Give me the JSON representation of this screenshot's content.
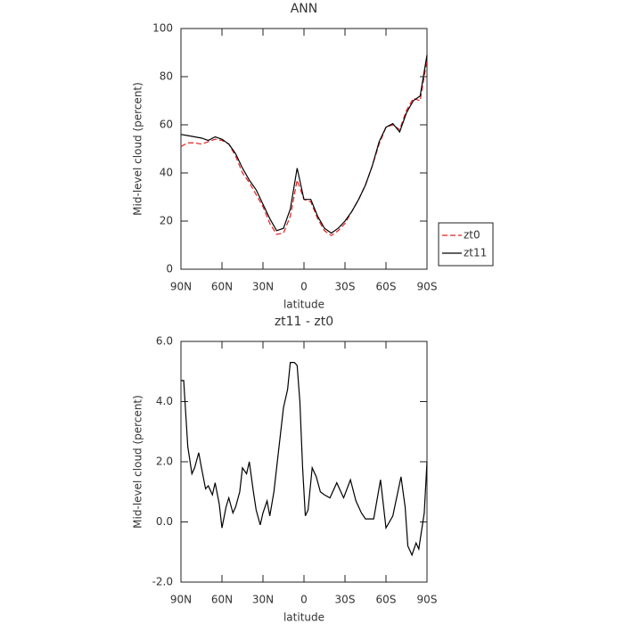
{
  "chart_data": [
    {
      "type": "line",
      "title": "ANN",
      "xlabel": "latitude",
      "ylabel": "Mid-level cloud (percent)",
      "x": [
        90,
        85,
        80,
        75,
        70,
        65,
        60,
        55,
        50,
        45,
        40,
        35,
        30,
        25,
        20,
        15,
        10,
        5,
        0,
        -5,
        -10,
        -15,
        -20,
        -25,
        -30,
        -35,
        -40,
        -45,
        -50,
        -55,
        -60,
        -65,
        -70,
        -75,
        -80,
        -85,
        -90
      ],
      "series": [
        {
          "name": "zt0",
          "color": "#e02020",
          "line_style": "dashed",
          "values": [
            51,
            52.5,
            52.5,
            52,
            53,
            54,
            53.5,
            52,
            47,
            40,
            36,
            31,
            26,
            19,
            14.5,
            15,
            22,
            37,
            29,
            28,
            21,
            16,
            14,
            16,
            19,
            24,
            29,
            35,
            43,
            52,
            59,
            60,
            58,
            66,
            71,
            70,
            87
          ]
        },
        {
          "name": "zt11",
          "color": "#000000",
          "line_style": "solid",
          "values": [
            56,
            55.5,
            55,
            54.5,
            53.5,
            55,
            54,
            52,
            48,
            42,
            37,
            33,
            27,
            21,
            16,
            17,
            25,
            42,
            29,
            29,
            22,
            17,
            15,
            17,
            20,
            24,
            29,
            35,
            43,
            53,
            59,
            60.5,
            57,
            65,
            70,
            72,
            89
          ]
        }
      ],
      "xlim": [
        90,
        -90
      ],
      "xticks": [
        {
          "value": 90,
          "label": "90N"
        },
        {
          "value": 60,
          "label": "60N"
        },
        {
          "value": 30,
          "label": "30N"
        },
        0,
        {
          "value": -30,
          "label": "30S"
        },
        {
          "value": -60,
          "label": "60S"
        },
        {
          "value": -90,
          "label": "90S"
        }
      ],
      "ylim": [
        0,
        100
      ],
      "yticks": [
        0,
        20,
        40,
        60,
        80,
        100
      ],
      "legend": "right"
    },
    {
      "type": "line",
      "title": "zt11 - zt0",
      "xlabel": "latitude",
      "ylabel": "Mid-level cloud (percent)",
      "x": [
        90,
        88,
        85,
        82,
        80,
        77,
        75,
        72,
        70,
        67,
        65,
        62,
        60,
        57,
        55,
        52,
        50,
        47,
        45,
        42,
        40,
        37,
        35,
        32,
        30,
        27,
        25,
        22,
        20,
        17,
        15,
        12,
        10,
        7,
        5,
        3,
        1,
        -1,
        -3,
        -6,
        -9,
        -12,
        -15,
        -19,
        -24,
        -29,
        -34,
        -38,
        -42,
        -45,
        -51,
        -56,
        -60,
        -65,
        -71,
        -74,
        -76,
        -79,
        -82,
        -84,
        -88,
        -90
      ],
      "values": [
        4.7,
        4.7,
        2.5,
        1.6,
        1.8,
        2.3,
        1.8,
        1.1,
        1.2,
        0.9,
        1.3,
        0.6,
        -0.2,
        0.5,
        0.8,
        0.3,
        0.5,
        1.0,
        1.8,
        1.6,
        2.0,
        1.0,
        0.4,
        -0.1,
        0.3,
        0.7,
        0.2,
        1.0,
        1.8,
        3.0,
        3.8,
        4.4,
        5.3,
        5.3,
        5.2,
        4.0,
        1.8,
        0.2,
        0.4,
        1.8,
        1.5,
        1.0,
        0.9,
        0.8,
        1.3,
        0.8,
        1.4,
        0.7,
        0.3,
        0.1,
        0.1,
        1.4,
        -0.2,
        0.2,
        1.5,
        0.5,
        -0.8,
        -1.1,
        -0.7,
        -0.9,
        0.3,
        2.0
      ],
      "color": "#000000",
      "xlim": [
        90,
        -90
      ],
      "xticks": [
        {
          "value": 90,
          "label": "90N"
        },
        {
          "value": 60,
          "label": "60N"
        },
        {
          "value": 30,
          "label": "30N"
        },
        0,
        {
          "value": -30,
          "label": "30S"
        },
        {
          "value": -60,
          "label": "60S"
        },
        {
          "value": -90,
          "label": "90S"
        }
      ],
      "ylim": [
        -2,
        6
      ],
      "yticks": [
        {
          "value": -2,
          "label": "-2.0"
        },
        {
          "value": 0,
          "label": "0.0"
        },
        {
          "value": 2,
          "label": "2.0"
        },
        {
          "value": 4,
          "label": "4.0"
        },
        {
          "value": 6,
          "label": "6.0"
        }
      ]
    }
  ]
}
